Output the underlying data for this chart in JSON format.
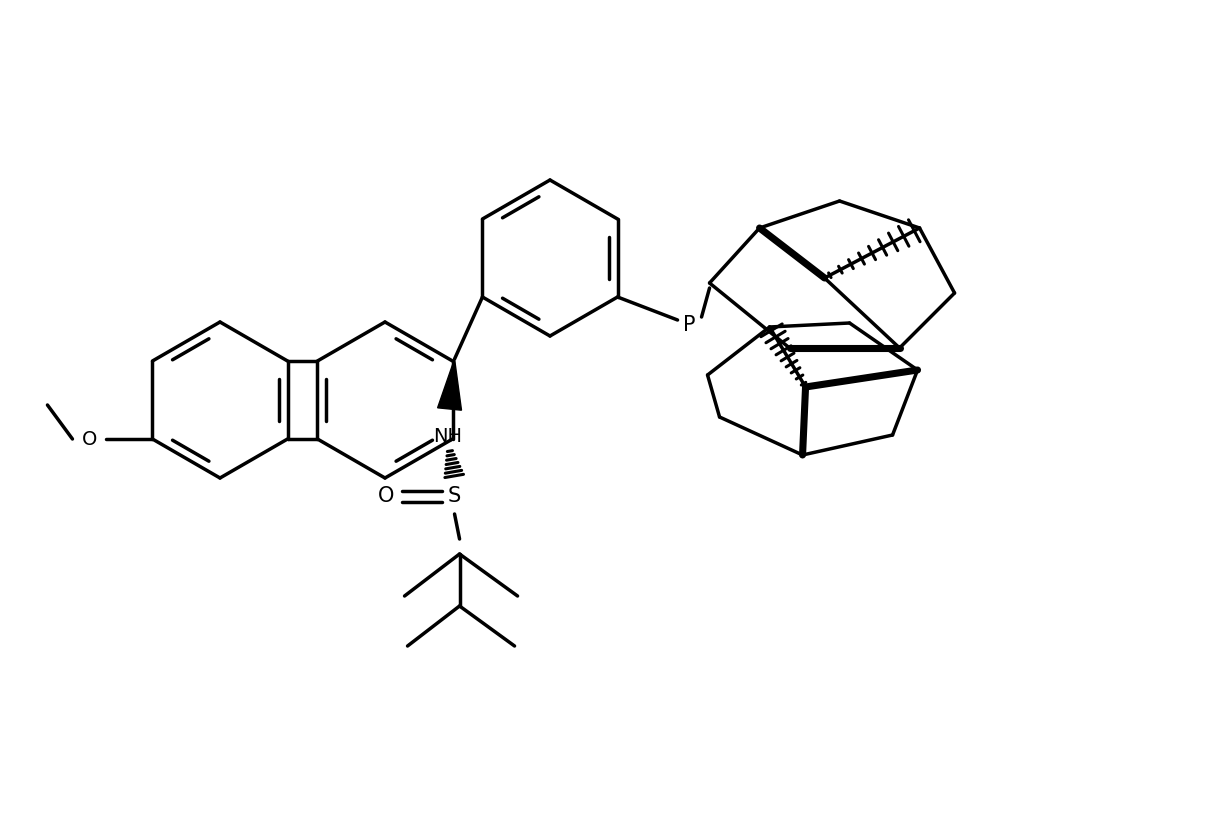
{
  "background_color": "#ffffff",
  "line_color": "#000000",
  "lw": 2.5,
  "blw": 6.0,
  "figsize": [
    12.3,
    8.3
  ],
  "dpi": 100,
  "xlim": [
    0,
    12.3
  ],
  "ylim": [
    0,
    8.3
  ]
}
